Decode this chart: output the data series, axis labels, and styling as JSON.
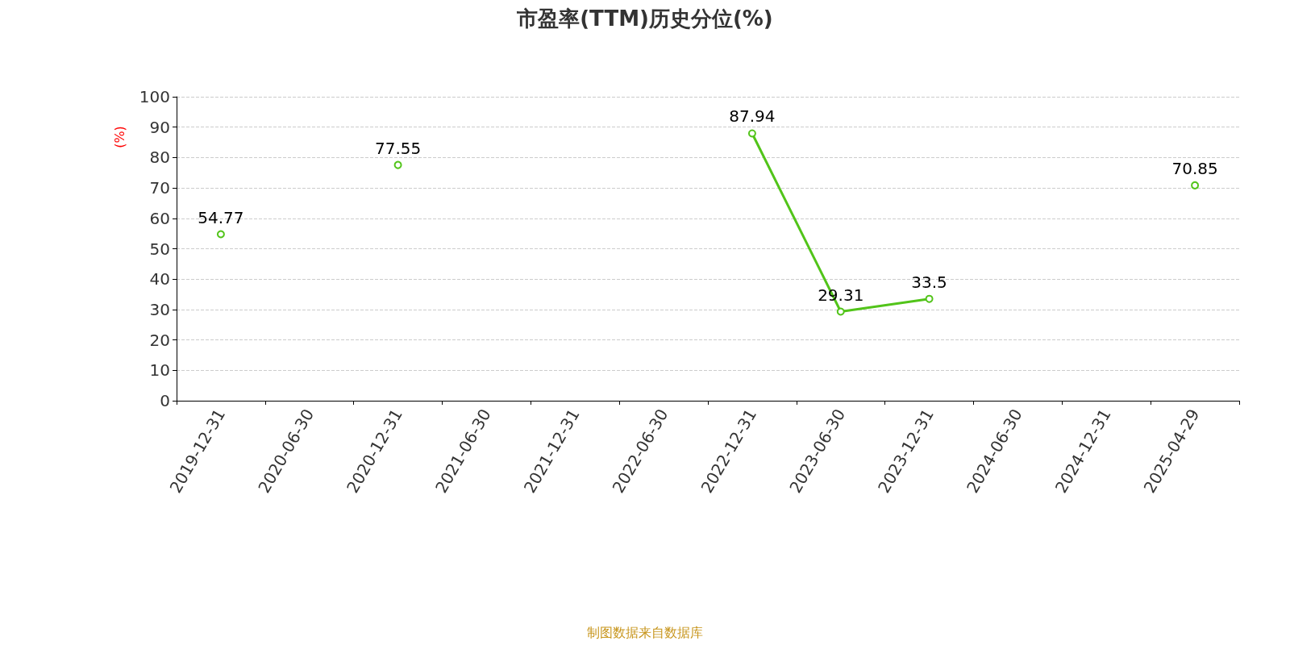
{
  "chart_data": {
    "type": "line",
    "title": "市盈率(TTM)历史分位(%)",
    "ylabel": "(%)",
    "categories": [
      "2019-12-31",
      "2020-06-30",
      "2020-12-31",
      "2021-06-30",
      "2021-12-31",
      "2022-06-30",
      "2022-12-31",
      "2023-06-30",
      "2023-12-31",
      "2024-06-30",
      "2024-12-31",
      "2025-04-29"
    ],
    "series": [
      {
        "color": "#52c41a",
        "values": [
          54.77,
          null,
          77.55,
          null,
          null,
          null,
          87.94,
          29.31,
          33.5,
          null,
          null,
          70.85
        ]
      }
    ],
    "ylim": [
      0,
      100
    ],
    "yticks": [
      0,
      10,
      20,
      30,
      40,
      50,
      60,
      70,
      80,
      90,
      100
    ],
    "grid": "y",
    "marker": "circle",
    "line_style": "solid",
    "data_labels": true,
    "annotations": [
      "制图数据来自数据库"
    ]
  }
}
